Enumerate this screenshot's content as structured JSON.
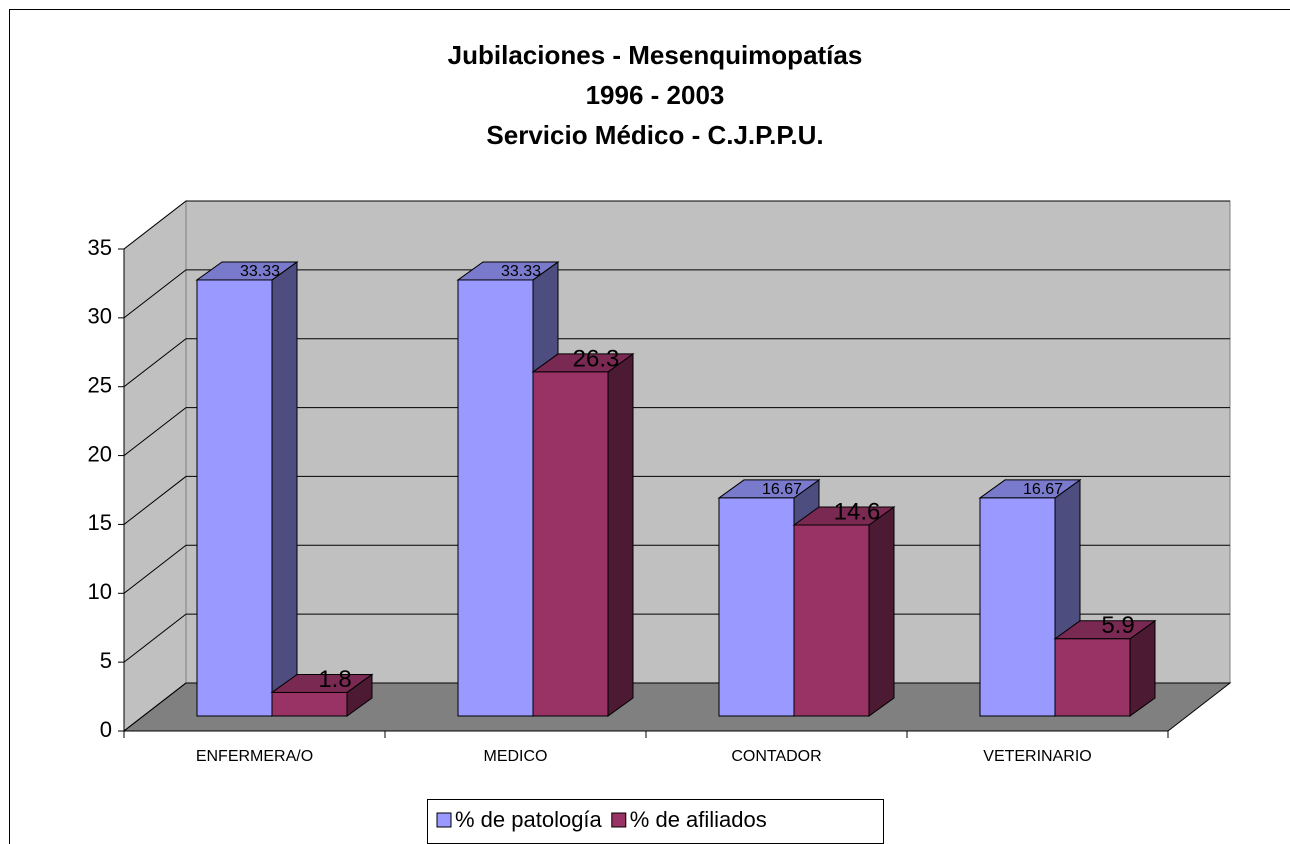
{
  "chart_data": {
    "type": "bar3d",
    "title": [
      "Jubilaciones - Mesenquimopatías",
      "1996 - 2003",
      "Servicio Médico - C.J.P.P.U."
    ],
    "categories": [
      "ENFERMERA/O",
      "MEDICO",
      "CONTADOR",
      "VETERINARIO"
    ],
    "series": [
      {
        "name": "% de patología",
        "color": "#9999ff",
        "values": [
          33.33,
          33.33,
          16.67,
          16.67
        ]
      },
      {
        "name": "% de afiliados",
        "color": "#993366",
        "values": [
          1.8,
          26.3,
          14.6,
          5.9
        ]
      }
    ],
    "ylim": [
      0,
      35
    ],
    "yticks": [
      0,
      5,
      10,
      15,
      20,
      25,
      30,
      35
    ],
    "grid": true,
    "legend": "bottom"
  }
}
